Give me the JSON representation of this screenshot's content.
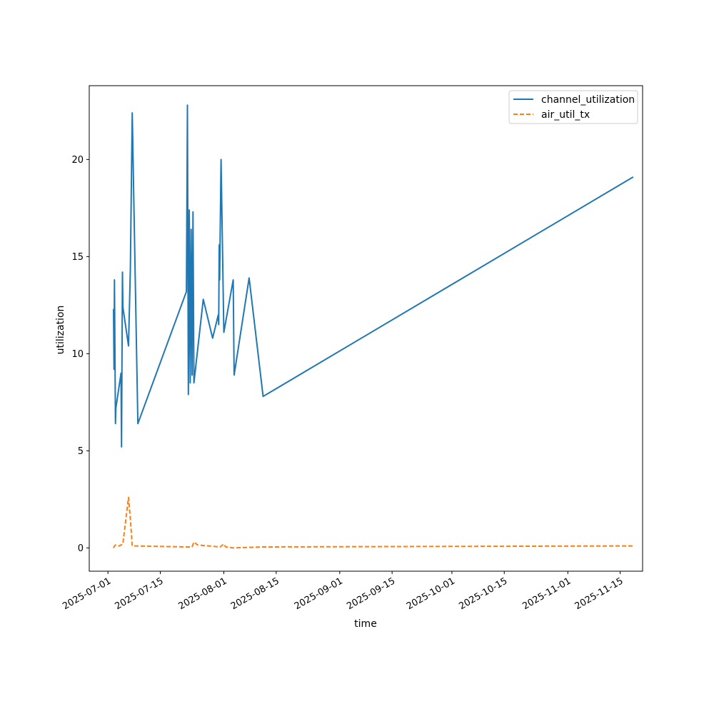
{
  "chart_data": {
    "type": "line",
    "xlabel": "time",
    "ylabel": "utilization",
    "x_axis_type": "date",
    "xlim": [
      "2025-06-26",
      "2025-11-21"
    ],
    "ylim": [
      -1.2,
      23.8
    ],
    "x_ticks": [
      "2025-07-01",
      "2025-07-15",
      "2025-08-01",
      "2025-08-15",
      "2025-09-01",
      "2025-09-15",
      "2025-10-01",
      "2025-10-15",
      "2025-11-01",
      "2025-11-15"
    ],
    "y_ticks": [
      0,
      5,
      10,
      15,
      20
    ],
    "grid": false,
    "legend_placement": "upper-right",
    "series": [
      {
        "name": "channel_utilization",
        "color": "#1f77b4",
        "style": "solid",
        "points": [
          [
            "2025-07-02 12:00",
            12.3
          ],
          [
            "2025-07-02 15:00",
            9.2
          ],
          [
            "2025-07-02 18:00",
            13.8
          ],
          [
            "2025-07-03 00:00",
            6.4
          ],
          [
            "2025-07-03 03:00",
            7.2
          ],
          [
            "2025-07-04 12:00",
            9.0
          ],
          [
            "2025-07-04 15:00",
            5.2
          ],
          [
            "2025-07-04 21:00",
            14.2
          ],
          [
            "2025-07-05 00:00",
            12.4
          ],
          [
            "2025-07-06 12:00",
            10.4
          ],
          [
            "2025-07-07 00:00",
            14.4
          ],
          [
            "2025-07-07 12:00",
            22.4
          ],
          [
            "2025-07-09 00:00",
            6.4
          ],
          [
            "2025-07-22 00:00",
            13.2
          ],
          [
            "2025-07-22 06:00",
            22.8
          ],
          [
            "2025-07-22 12:00",
            7.9
          ],
          [
            "2025-07-22 18:00",
            17.4
          ],
          [
            "2025-07-23 00:00",
            8.5
          ],
          [
            "2025-07-23 06:00",
            16.4
          ],
          [
            "2025-07-23 12:00",
            8.9
          ],
          [
            "2025-07-23 18:00",
            17.3
          ],
          [
            "2025-07-24 00:00",
            8.5
          ],
          [
            "2025-07-26 12:00",
            12.8
          ],
          [
            "2025-07-29 00:00",
            10.8
          ],
          [
            "2025-07-30 12:00",
            12.0
          ],
          [
            "2025-07-30 15:00",
            11.5
          ],
          [
            "2025-07-30 18:00",
            15.6
          ],
          [
            "2025-07-30 21:00",
            13.8
          ],
          [
            "2025-07-31 06:00",
            20.0
          ],
          [
            "2025-08-01 00:00",
            11.1
          ],
          [
            "2025-08-03 12:00",
            13.8
          ],
          [
            "2025-08-03 18:00",
            8.9
          ],
          [
            "2025-08-07 18:00",
            13.9
          ],
          [
            "2025-08-11 12:00",
            7.8
          ],
          [
            "2025-11-18 12:00",
            19.1
          ]
        ]
      },
      {
        "name": "air_util_tx",
        "color": "#ff7f0e",
        "style": "dashed",
        "points": [
          [
            "2025-07-02 12:00",
            0.0
          ],
          [
            "2025-07-02 18:00",
            0.1
          ],
          [
            "2025-07-03 00:00",
            0.15
          ],
          [
            "2025-07-04 00:00",
            0.1
          ],
          [
            "2025-07-05 00:00",
            0.2
          ],
          [
            "2025-07-06 12:00",
            2.6
          ],
          [
            "2025-07-07 00:00",
            1.5
          ],
          [
            "2025-07-07 12:00",
            0.1
          ],
          [
            "2025-07-22 00:00",
            0.05
          ],
          [
            "2025-07-23 12:00",
            0.05
          ],
          [
            "2025-07-24 00:00",
            0.3
          ],
          [
            "2025-07-25 00:00",
            0.15
          ],
          [
            "2025-07-31 00:00",
            0.05
          ],
          [
            "2025-08-01 00:00",
            0.2
          ],
          [
            "2025-08-01 12:00",
            0.05
          ],
          [
            "2025-08-03 12:00",
            0.0
          ],
          [
            "2025-08-11 12:00",
            0.05
          ],
          [
            "2025-11-18 12:00",
            0.1
          ]
        ]
      }
    ]
  }
}
